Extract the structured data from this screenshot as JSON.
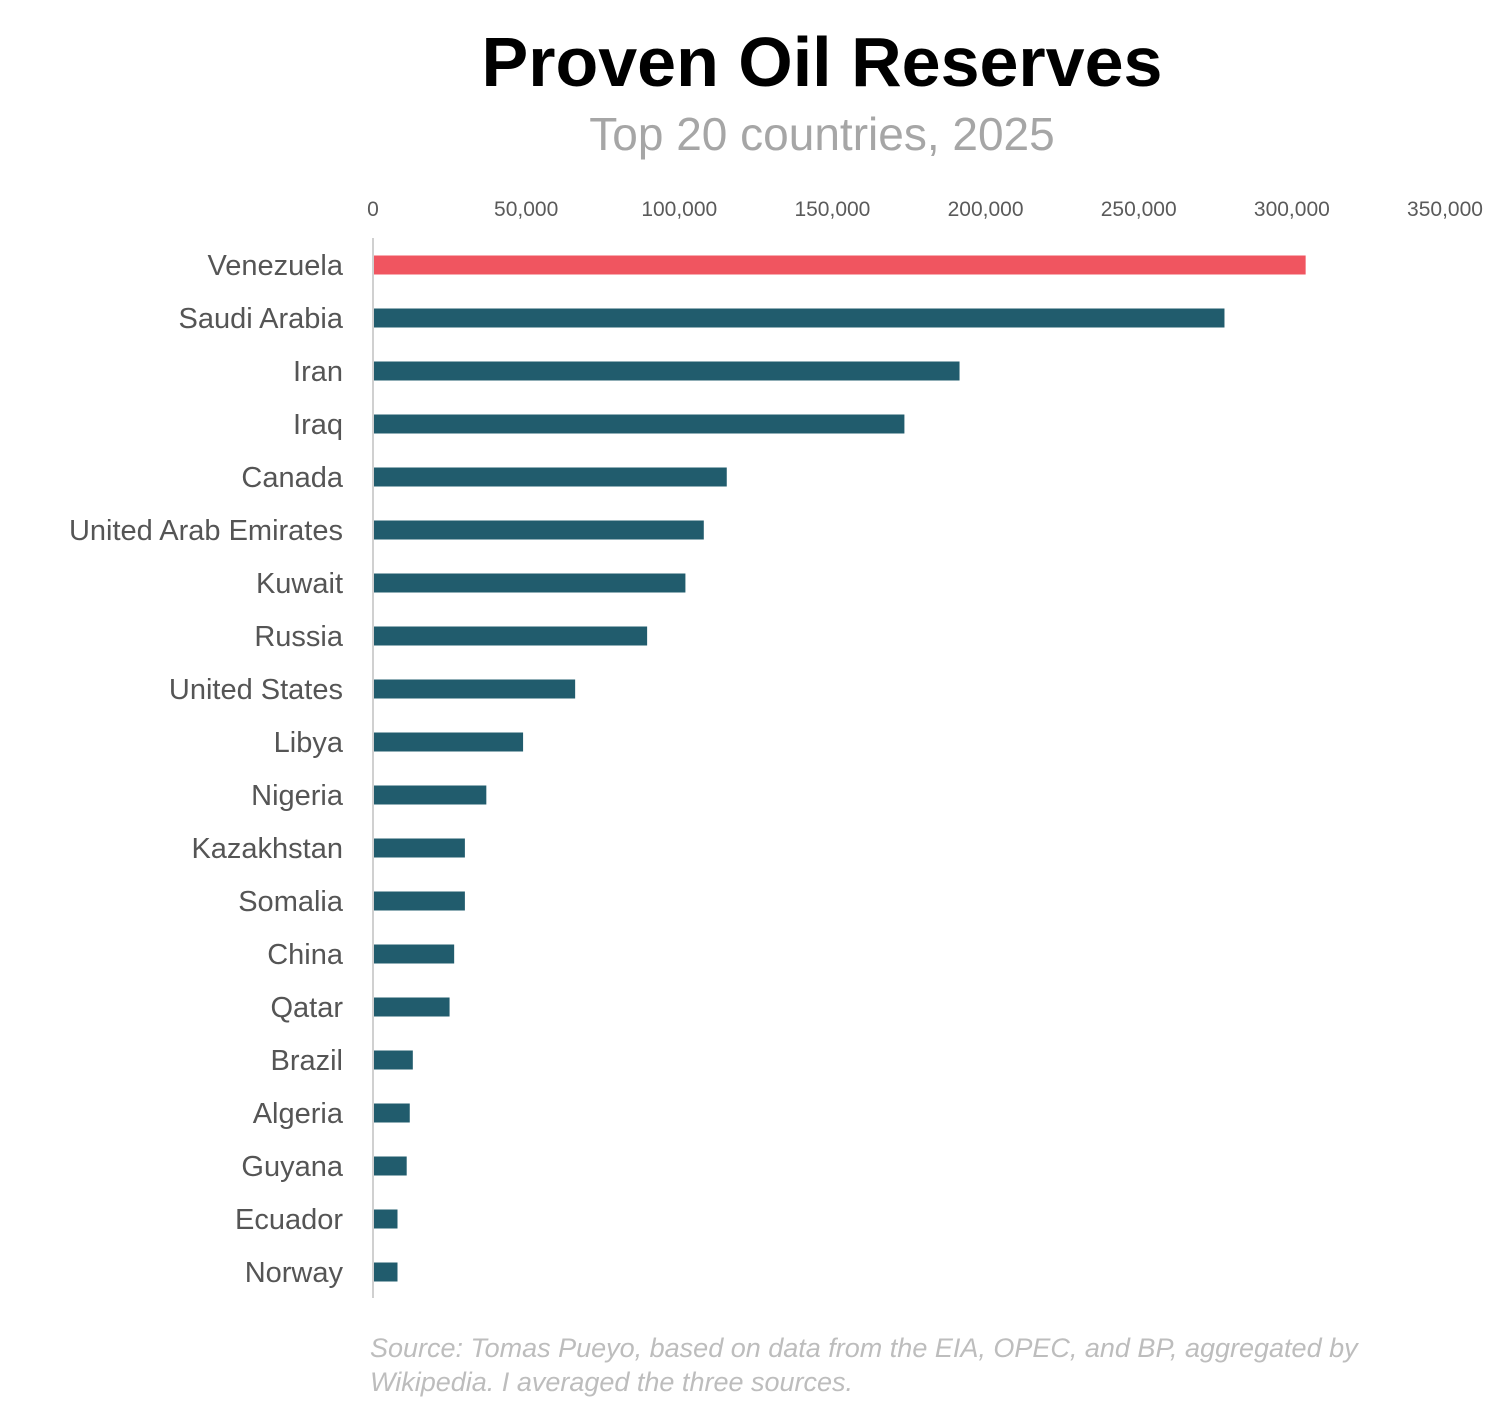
{
  "chart_data": {
    "type": "bar",
    "orientation": "horizontal",
    "title": "Proven Oil Reserves",
    "subtitle": "Top 20 countries, 2025",
    "categories": [
      "Venezuela",
      "Saudi Arabia",
      "Iran",
      "Iraq",
      "Canada",
      "United Arab Emirates",
      "Kuwait",
      "Russia",
      "United States",
      "Libya",
      "Nigeria",
      "Kazakhstan",
      "Somalia",
      "China",
      "Qatar",
      "Brazil",
      "Algeria",
      "Guyana",
      "Ecuador",
      "Norway"
    ],
    "values": [
      304500,
      278000,
      191500,
      173500,
      115500,
      108000,
      102000,
      89500,
      66000,
      49000,
      37000,
      30000,
      30000,
      26500,
      25000,
      13000,
      12000,
      11000,
      8000,
      8000
    ],
    "highlight_index": 0,
    "xlim": [
      0,
      350000
    ],
    "xticks": [
      0,
      50000,
      100000,
      150000,
      200000,
      250000,
      300000,
      350000
    ],
    "xtick_labels": [
      "0",
      "50,000",
      "100,000",
      "150,000",
      "200,000",
      "250,000",
      "300,000",
      "350,000"
    ],
    "xlabel": "",
    "ylabel": "",
    "grid": false,
    "legend": "none",
    "colors": {
      "bar": "#215c6d",
      "highlight": "#f05560",
      "axis": "#d0d0d0"
    }
  },
  "source_note": {
    "line1": "Source: Tomas Pueyo, based on data from the EIA, OPEC, and BP, aggregated by",
    "line2": "Wikipedia. I averaged the three sources."
  }
}
